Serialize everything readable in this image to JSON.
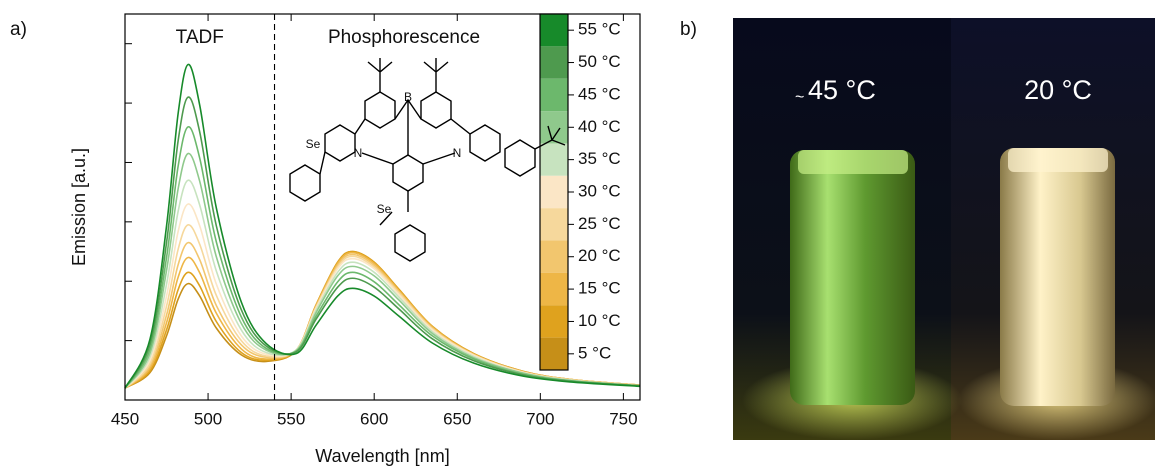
{
  "panel_a_label": "a)",
  "panel_b_label": "b)",
  "chart_data": {
    "type": "line",
    "xlabel": "Wavelength [nm]",
    "ylabel": "Emission [a.u.]",
    "annotations": [
      "TADF",
      "Phosphorescence"
    ],
    "divider_x": 540,
    "structure_labels": [
      "Se",
      "B",
      "N",
      "N",
      "Se"
    ],
    "x": [
      450,
      465,
      475,
      482,
      488,
      495,
      505,
      520,
      535,
      553,
      565,
      578,
      587,
      600,
      615,
      635,
      660,
      690,
      720,
      760
    ],
    "xlim": [
      450,
      760
    ],
    "xticks": [
      450,
      500,
      550,
      600,
      650,
      700,
      750
    ],
    "ylim": [
      0,
      6.5
    ],
    "yticks": [
      0,
      1,
      2,
      3,
      4,
      5,
      6
    ],
    "series": [
      {
        "name": "55 °C",
        "color": "#178a2a",
        "values": [
          0.2,
          1.02,
          2.93,
          4.83,
          5.65,
          4.96,
          3.23,
          1.65,
          0.95,
          0.78,
          1.26,
          1.75,
          1.88,
          1.75,
          1.41,
          0.96,
          0.62,
          0.4,
          0.3,
          0.23
        ]
      },
      {
        "name": "50 °C",
        "color": "#4e9a4e",
        "values": [
          0.2,
          0.94,
          2.65,
          4.37,
          5.1,
          4.51,
          2.93,
          1.52,
          0.91,
          0.81,
          1.36,
          1.9,
          2.05,
          1.9,
          1.53,
          1.03,
          0.66,
          0.42,
          0.31,
          0.24
        ]
      },
      {
        "name": "45 °C",
        "color": "#6cb86c",
        "values": [
          0.2,
          0.86,
          2.4,
          3.94,
          4.6,
          4.07,
          2.66,
          1.4,
          0.87,
          0.82,
          1.41,
          1.99,
          2.15,
          1.99,
          1.6,
          1.08,
          0.69,
          0.43,
          0.32,
          0.24
        ]
      },
      {
        "name": "40 °C",
        "color": "#8fc98c",
        "values": [
          0.2,
          0.79,
          2.18,
          3.56,
          4.15,
          3.68,
          2.41,
          1.29,
          0.84,
          0.83,
          1.47,
          2.09,
          2.25,
          2.09,
          1.68,
          1.12,
          0.71,
          0.45,
          0.32,
          0.24
        ]
      },
      {
        "name": "35 °C",
        "color": "#c7e3bf",
        "values": [
          0.2,
          0.73,
          1.95,
          3.18,
          3.7,
          3.28,
          2.17,
          1.18,
          0.8,
          0.84,
          1.51,
          2.15,
          2.32,
          2.15,
          1.73,
          1.15,
          0.73,
          0.45,
          0.33,
          0.24
        ]
      },
      {
        "name": "30 °C",
        "color": "#fbe6c6",
        "values": [
          0.2,
          0.67,
          1.75,
          2.84,
          3.3,
          2.93,
          1.95,
          1.08,
          0.77,
          0.84,
          1.54,
          2.21,
          2.38,
          2.21,
          1.77,
          1.18,
          0.75,
          0.46,
          0.33,
          0.24
        ]
      },
      {
        "name": "25 °C",
        "color": "#f6d89c",
        "values": [
          0.2,
          0.61,
          1.58,
          2.54,
          2.95,
          2.62,
          1.76,
          1.0,
          0.74,
          0.84,
          1.56,
          2.24,
          2.42,
          2.24,
          1.8,
          1.2,
          0.76,
          0.47,
          0.33,
          0.24
        ]
      },
      {
        "name": "20 °C",
        "color": "#f2c66e",
        "values": [
          0.2,
          0.57,
          1.43,
          2.28,
          2.65,
          2.36,
          1.59,
          0.93,
          0.72,
          0.84,
          1.57,
          2.27,
          2.45,
          2.27,
          1.82,
          1.21,
          0.76,
          0.47,
          0.34,
          0.25
        ]
      },
      {
        "name": "15 °C",
        "color": "#eeb646",
        "values": [
          0.2,
          0.53,
          1.3,
          2.07,
          2.4,
          2.14,
          1.46,
          0.86,
          0.69,
          0.84,
          1.59,
          2.3,
          2.48,
          2.3,
          1.84,
          1.23,
          0.77,
          0.47,
          0.34,
          0.25
        ]
      },
      {
        "name": "10 °C",
        "color": "#dfa21e",
        "values": [
          0.2,
          0.49,
          1.18,
          1.86,
          2.15,
          1.92,
          1.32,
          0.8,
          0.67,
          0.83,
          1.6,
          2.32,
          2.5,
          2.32,
          1.86,
          1.24,
          0.78,
          0.48,
          0.34,
          0.25
        ]
      },
      {
        "name": "5 °C",
        "color": "#c68f18",
        "values": [
          0.2,
          0.46,
          1.08,
          1.7,
          1.96,
          1.75,
          1.21,
          0.76,
          0.65,
          0.83,
          1.6,
          2.32,
          2.5,
          2.32,
          1.86,
          1.24,
          0.78,
          0.48,
          0.34,
          0.25
        ]
      }
    ]
  },
  "photo": {
    "left_approx": "~",
    "left_temp": "45 °C",
    "right_temp": "20 °C"
  }
}
